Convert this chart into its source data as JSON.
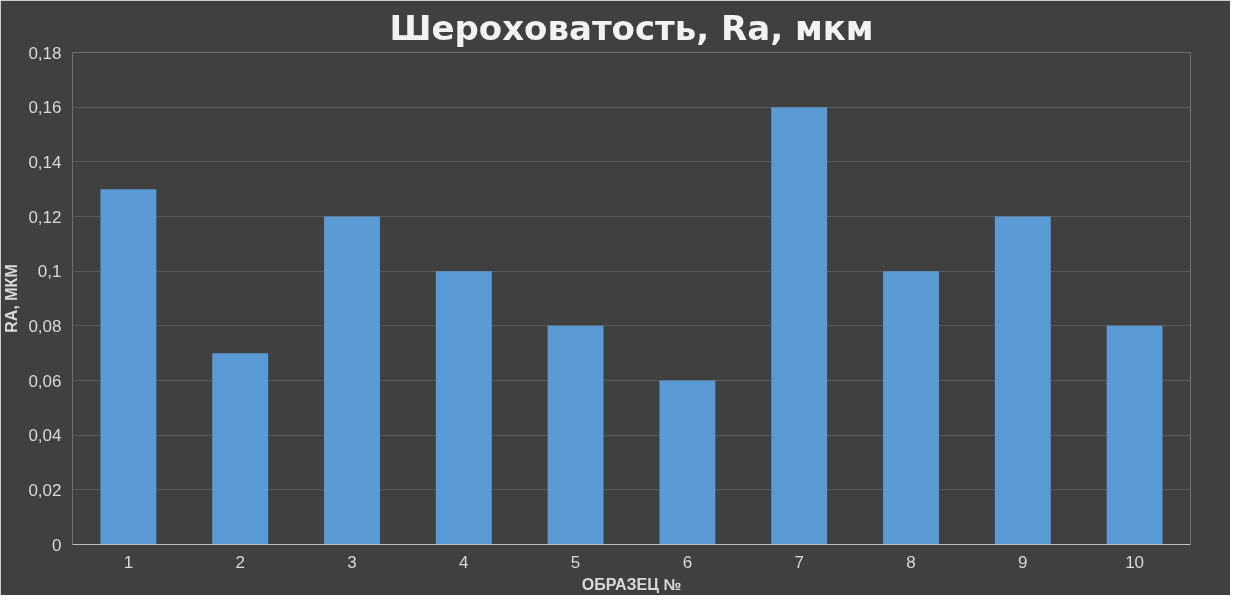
{
  "chart_data": {
    "type": "bar",
    "title": "Шероховатость, Ra, мкм",
    "xlabel": "ОБРАЗЕЦ №",
    "ylabel": "RA, МКМ",
    "categories": [
      "1",
      "2",
      "3",
      "4",
      "5",
      "6",
      "7",
      "8",
      "9",
      "10"
    ],
    "values": [
      0.13,
      0.07,
      0.12,
      0.1,
      0.08,
      0.06,
      0.16,
      0.1,
      0.12,
      0.08
    ],
    "color": "#5b9bd5",
    "ylim": [
      0,
      0.18
    ],
    "yticks": [
      {
        "value": 0,
        "label": "0"
      },
      {
        "value": 0.02,
        "label": "0,02"
      },
      {
        "value": 0.04,
        "label": "0,04"
      },
      {
        "value": 0.06,
        "label": "0,06"
      },
      {
        "value": 0.08,
        "label": "0,08"
      },
      {
        "value": 0.1,
        "label": "0,1"
      },
      {
        "value": 0.12,
        "label": "0,12"
      },
      {
        "value": 0.14,
        "label": "0,14"
      },
      {
        "value": 0.16,
        "label": "0,16"
      },
      {
        "value": 0.18,
        "label": "0,18"
      }
    ],
    "grid": "y"
  }
}
